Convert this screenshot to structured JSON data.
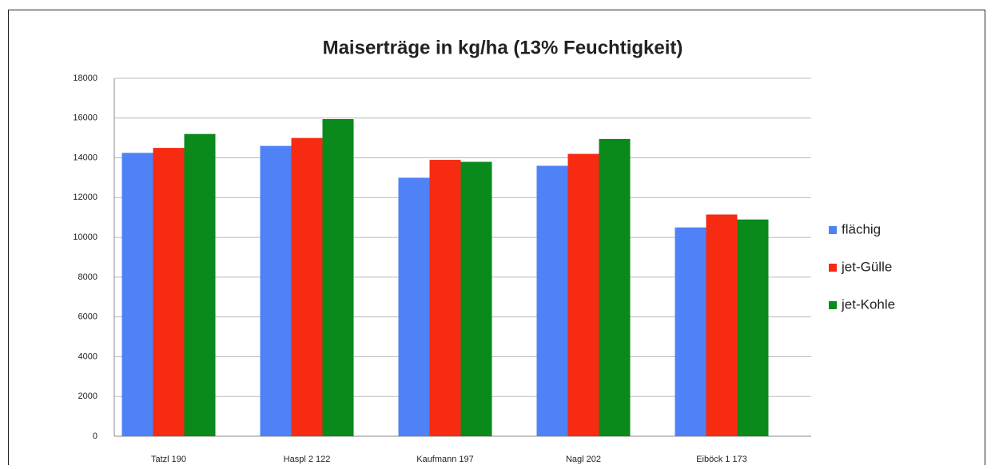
{
  "chart_data": {
    "type": "bar",
    "title": "Maiserträge in kg/ha (13% Feuchtigkeit)",
    "categories": [
      "Tatzl 190",
      "Haspl 2 122",
      "Kaufmann 197",
      "Nagl 202",
      "Eiböck 1 173"
    ],
    "series": [
      {
        "name": "flächig",
        "color": "#4f81f7",
        "values": [
          14250,
          14600,
          13000,
          13600,
          10500
        ]
      },
      {
        "name": "jet-Gülle",
        "color": "#f62b12",
        "values": [
          14500,
          15000,
          13900,
          14200,
          11150
        ]
      },
      {
        "name": "jet-Kohle",
        "color": "#0a8a1b",
        "values": [
          15200,
          15950,
          13800,
          14950,
          10900
        ]
      }
    ],
    "ylim": [
      0,
      18000
    ],
    "yticks": [
      0,
      2000,
      4000,
      6000,
      8000,
      10000,
      12000,
      14000,
      16000,
      18000
    ],
    "grid": true,
    "legend": "right"
  }
}
